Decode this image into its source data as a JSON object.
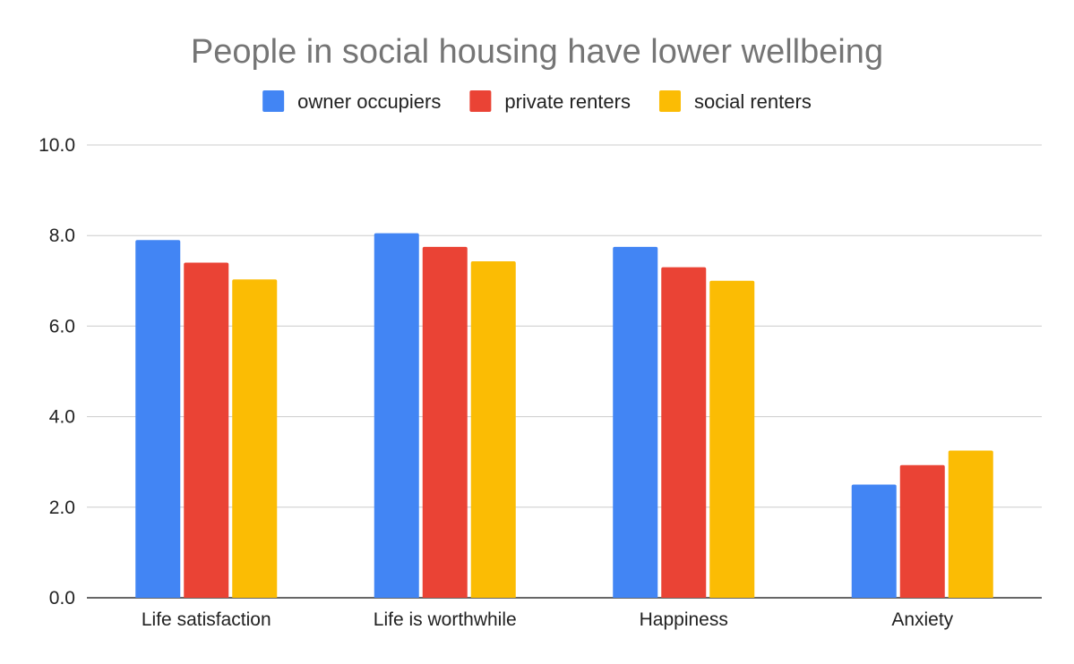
{
  "chart_data": {
    "type": "bar",
    "title": "People in social housing have lower wellbeing",
    "xlabel": "",
    "ylabel": "",
    "ylim": [
      0,
      10
    ],
    "yticks": [
      "0.0",
      "2.0",
      "4.0",
      "6.0",
      "8.0",
      "10.0"
    ],
    "ytick_values": [
      0,
      2,
      4,
      6,
      8,
      10
    ],
    "grid": true,
    "legend_position": "top",
    "categories": [
      "Life satisfaction",
      "Life is worthwhile",
      "Happiness",
      "Anxiety"
    ],
    "series": [
      {
        "name": "owner occupiers",
        "color": "#4285f4",
        "values": [
          7.9,
          8.05,
          7.75,
          2.5
        ]
      },
      {
        "name": "private renters",
        "color": "#ea4335",
        "values": [
          7.4,
          7.75,
          7.3,
          2.93
        ]
      },
      {
        "name": "social renters",
        "color": "#fbbc04",
        "values": [
          7.03,
          7.43,
          7.0,
          3.25
        ]
      }
    ]
  }
}
